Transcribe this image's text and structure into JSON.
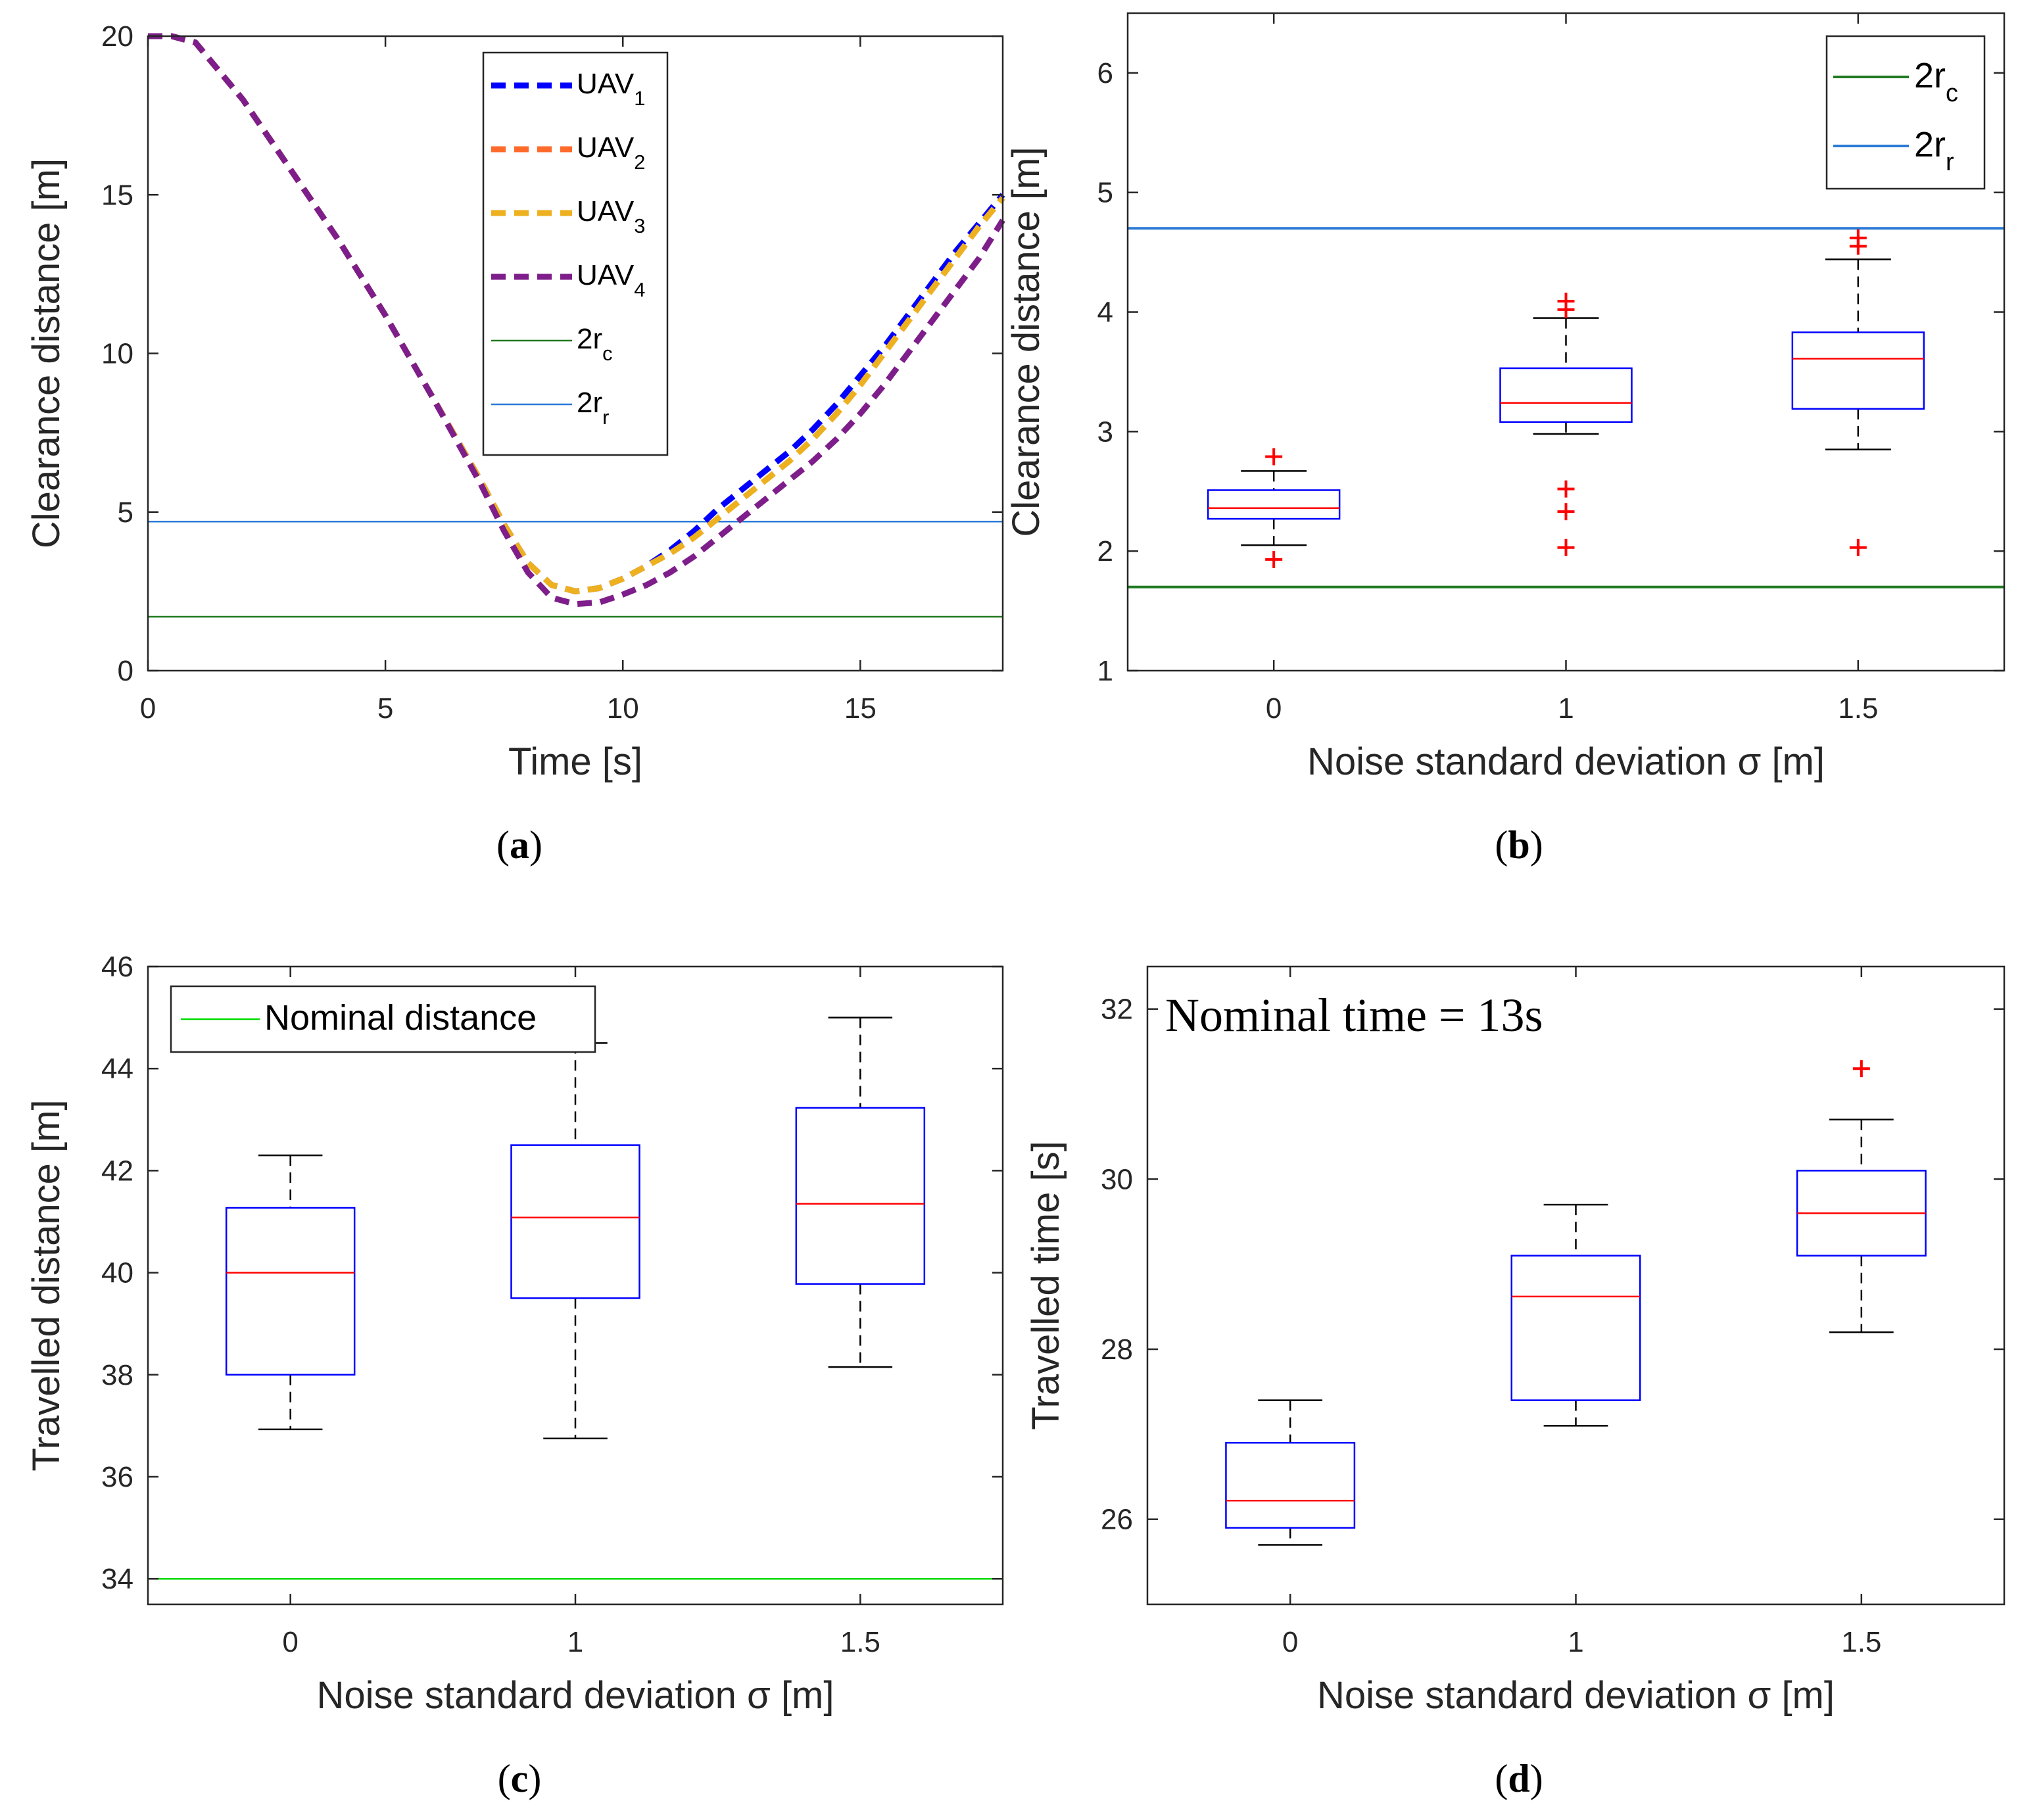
{
  "figure": {
    "background": "#ffffff"
  },
  "chart_data": [
    {
      "id": "a",
      "type": "line",
      "subfigure_label": "(a)",
      "xlabel": "Time [s]",
      "ylabel": "Clearance distance [m]",
      "xlim": [
        0,
        18
      ],
      "ylim": [
        0,
        20
      ],
      "xticks": [
        0,
        5,
        10,
        15
      ],
      "xtick_labels": [
        "0",
        "5",
        "10",
        "15"
      ],
      "yticks": [
        0,
        5,
        10,
        15,
        20
      ],
      "ytick_labels": [
        "0",
        "5",
        "10",
        "15",
        "20"
      ],
      "legend_position": "top-center",
      "series": [
        {
          "name": "UAV",
          "subscript": "1",
          "color": "#0000ff",
          "style": "dashed",
          "x": [
            0,
            0.5,
            1,
            2,
            3,
            4,
            5,
            6,
            7,
            7.5,
            8,
            8.5,
            9,
            9.5,
            10,
            10.5,
            11,
            11.5,
            12,
            12.5,
            13,
            13.5,
            14,
            14.5,
            15,
            15.5,
            16,
            16.5,
            17,
            17.5,
            18
          ],
          "values": [
            20,
            20,
            19.8,
            18,
            15.8,
            13.6,
            11.2,
            8.6,
            6,
            4.6,
            3.4,
            2.7,
            2.5,
            2.6,
            2.9,
            3.3,
            3.8,
            4.4,
            5.1,
            5.7,
            6.3,
            6.9,
            7.6,
            8.4,
            9.3,
            10.2,
            11.2,
            12.2,
            13.2,
            14.1,
            15
          ]
        },
        {
          "name": "UAV",
          "subscript": "2",
          "color": "#ff6a2b",
          "style": "dashed",
          "x": [
            0,
            0.5,
            1,
            2,
            3,
            4,
            5,
            6,
            7,
            7.5,
            8,
            8.5,
            9,
            9.5,
            10,
            10.5,
            11,
            11.5,
            12,
            12.5,
            13,
            13.5,
            14,
            14.5,
            15,
            15.5,
            16,
            16.5,
            17,
            17.5,
            18
          ],
          "values": [
            20,
            20,
            19.8,
            18,
            15.8,
            13.6,
            11.2,
            8.6,
            6,
            4.6,
            3.4,
            2.7,
            2.5,
            2.6,
            2.9,
            3.3,
            3.7,
            4.2,
            4.8,
            5.4,
            6,
            6.6,
            7.3,
            8.1,
            9,
            10,
            11,
            12,
            13,
            14,
            14.9
          ]
        },
        {
          "name": "UAV",
          "subscript": "3",
          "color": "#edb120",
          "style": "dashed",
          "x": [
            0,
            0.5,
            1,
            2,
            3,
            4,
            5,
            6,
            7,
            7.5,
            8,
            8.5,
            9,
            9.5,
            10,
            10.5,
            11,
            11.5,
            12,
            12.5,
            13,
            13.5,
            14,
            14.5,
            15,
            15.5,
            16,
            16.5,
            17,
            17.5,
            18
          ],
          "values": [
            20,
            20,
            19.8,
            18,
            15.8,
            13.6,
            11.2,
            8.6,
            6,
            4.6,
            3.4,
            2.7,
            2.5,
            2.6,
            2.9,
            3.3,
            3.7,
            4.2,
            4.8,
            5.4,
            6,
            6.6,
            7.3,
            8.1,
            9,
            10,
            11,
            12,
            13,
            14,
            14.9
          ]
        },
        {
          "name": "UAV",
          "subscript": "4",
          "color": "#7e1e8a",
          "style": "dashed",
          "x": [
            0,
            0.5,
            1,
            2,
            3,
            4,
            5,
            6,
            7,
            7.5,
            8,
            8.5,
            9,
            9.5,
            10,
            10.5,
            11,
            11.5,
            12,
            12.5,
            13,
            13.5,
            14,
            14.5,
            15,
            15.5,
            16,
            16.5,
            17,
            17.5,
            18
          ],
          "values": [
            20,
            20,
            19.8,
            18,
            15.8,
            13.6,
            11.2,
            8.6,
            5.9,
            4.4,
            3.1,
            2.3,
            2.1,
            2.15,
            2.4,
            2.7,
            3.1,
            3.6,
            4.2,
            4.8,
            5.4,
            6,
            6.6,
            7.3,
            8.1,
            9,
            10,
            11,
            12,
            13,
            14.2
          ]
        },
        {
          "name": "2r",
          "subscript": "c",
          "color": "#217a21",
          "style": "solid",
          "constant": 1.7
        },
        {
          "name": "2r",
          "subscript": "r",
          "color": "#2a7ad5",
          "style": "solid",
          "constant": 4.7
        }
      ]
    },
    {
      "id": "b",
      "type": "box",
      "subfigure_label": "(b)",
      "xlabel": "Noise standard deviation σ [m]",
      "ylabel": "Clearance distance [m]",
      "ylim": [
        1,
        6.5
      ],
      "yticks": [
        1,
        2,
        3,
        4,
        5,
        6
      ],
      "ytick_labels": [
        "1",
        "2",
        "3",
        "4",
        "5",
        "6"
      ],
      "categories": [
        "0",
        "1",
        "1.5"
      ],
      "legend_position": "top-right",
      "boxes": [
        {
          "q1": 2.27,
          "median": 2.36,
          "q3": 2.51,
          "whisker_low": 2.05,
          "whisker_high": 2.67,
          "outliers": [
            1.93,
            2.79
          ]
        },
        {
          "q1": 3.08,
          "median": 3.24,
          "q3": 3.53,
          "whisker_low": 2.98,
          "whisker_high": 3.95,
          "outliers": [
            2.03,
            2.33,
            2.52,
            4.02,
            4.09
          ]
        },
        {
          "q1": 3.19,
          "median": 3.61,
          "q3": 3.83,
          "whisker_low": 2.85,
          "whisker_high": 4.44,
          "outliers": [
            2.03,
            4.55,
            4.62
          ]
        }
      ],
      "reference_lines": [
        {
          "name": "2r",
          "subscript": "c",
          "value": 1.7,
          "color": "#217a21"
        },
        {
          "name": "2r",
          "subscript": "r",
          "value": 4.7,
          "color": "#2a7ad5"
        }
      ]
    },
    {
      "id": "c",
      "type": "box",
      "subfigure_label": "(c)",
      "xlabel": "Noise standard deviation σ [m]",
      "ylabel": "Travelled distance [m]",
      "ylim": [
        33.5,
        46
      ],
      "yticks": [
        34,
        36,
        38,
        40,
        42,
        44,
        46
      ],
      "ytick_labels": [
        "34",
        "36",
        "38",
        "40",
        "42",
        "44",
        "46"
      ],
      "categories": [
        "0",
        "1",
        "1.5"
      ],
      "legend_position": "top-left",
      "boxes": [
        {
          "q1": 38.0,
          "median": 40.0,
          "q3": 41.27,
          "whisker_low": 36.93,
          "whisker_high": 42.3,
          "outliers": []
        },
        {
          "q1": 39.5,
          "median": 41.08,
          "q3": 42.5,
          "whisker_low": 36.75,
          "whisker_high": 44.5,
          "outliers": []
        },
        {
          "q1": 39.78,
          "median": 41.35,
          "q3": 43.23,
          "whisker_low": 38.15,
          "whisker_high": 45.0,
          "outliers": []
        }
      ],
      "reference_lines": [
        {
          "name": "Nominal distance",
          "value": 34,
          "color": "#00dd00"
        }
      ]
    },
    {
      "id": "d",
      "type": "box",
      "subfigure_label": "(d)",
      "xlabel": "Noise standard deviation σ [m]",
      "ylabel": "Travelled time [s]",
      "ylim": [
        25,
        32.5
      ],
      "yticks": [
        26,
        28,
        30,
        32
      ],
      "ytick_labels": [
        "26",
        "28",
        "30",
        "32"
      ],
      "categories": [
        "0",
        "1",
        "1.5"
      ],
      "annotation": "Nominal time = 13s",
      "boxes": [
        {
          "q1": 25.9,
          "median": 26.22,
          "q3": 26.9,
          "whisker_low": 25.7,
          "whisker_high": 27.4,
          "outliers": []
        },
        {
          "q1": 27.4,
          "median": 28.62,
          "q3": 29.1,
          "whisker_low": 27.1,
          "whisker_high": 29.7,
          "outliers": []
        },
        {
          "q1": 29.1,
          "median": 29.6,
          "q3": 30.1,
          "whisker_low": 28.2,
          "whisker_high": 30.7,
          "outliers": [
            31.3
          ]
        }
      ]
    }
  ]
}
